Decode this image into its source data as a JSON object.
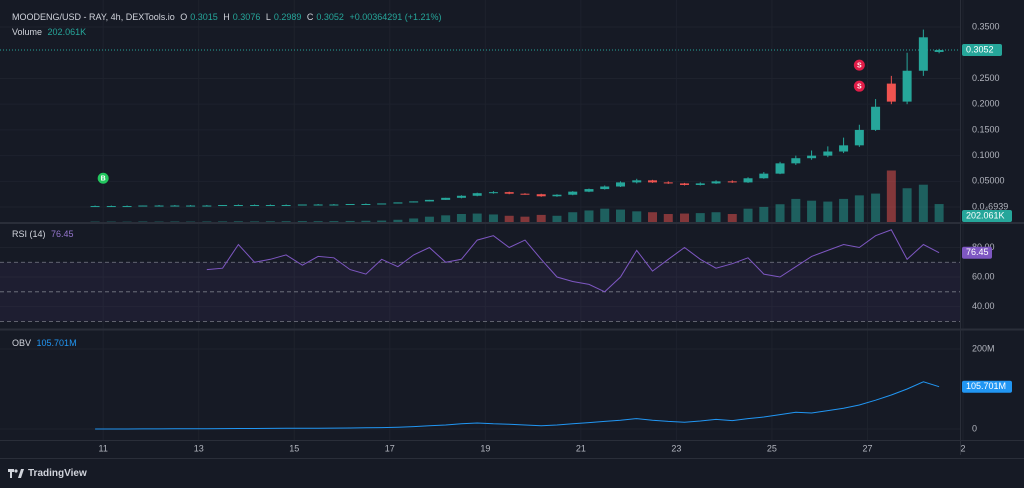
{
  "chart_data": [
    {
      "type": "candlestick",
      "title": "MOODENG/USD - RAY, 4h, DEXTools.io",
      "ohlc_labels": [
        "O",
        "H",
        "L",
        "C"
      ],
      "change": "+0.00364291 (+1.21%)",
      "up_color": "#26a69a",
      "down_color": "#ef5350",
      "x": [
        10.83,
        11.17,
        11.5,
        11.83,
        12.17,
        12.5,
        12.83,
        13.17,
        13.5,
        13.83,
        14.17,
        14.5,
        14.83,
        15.17,
        15.5,
        15.83,
        16.17,
        16.5,
        16.83,
        17.17,
        17.5,
        17.83,
        18.17,
        18.5,
        18.83,
        19.17,
        19.5,
        19.83,
        20.17,
        20.5,
        20.83,
        21.17,
        21.5,
        21.83,
        22.17,
        22.5,
        22.83,
        23.17,
        23.5,
        23.83,
        24.17,
        24.5,
        24.83,
        25.17,
        25.5,
        25.83,
        26.17,
        26.5,
        26.83,
        27.17,
        27.5,
        27.83,
        28.17,
        28.5
      ],
      "open": [
        0.002,
        0.002,
        0.002,
        0.002,
        0.003,
        0.003,
        0.003,
        0.003,
        0.003,
        0.004,
        0.004,
        0.004,
        0.004,
        0.004,
        0.005,
        0.005,
        0.005,
        0.006,
        0.006,
        0.007,
        0.009,
        0.011,
        0.014,
        0.018,
        0.022,
        0.027,
        0.029,
        0.026,
        0.025,
        0.021,
        0.024,
        0.03,
        0.035,
        0.04,
        0.048,
        0.052,
        0.048,
        0.046,
        0.043,
        0.046,
        0.05,
        0.048,
        0.056,
        0.065,
        0.085,
        0.095,
        0.1,
        0.108,
        0.12,
        0.15,
        0.24,
        0.205,
        0.265,
        0.3015
      ],
      "high": [
        0.003,
        0.003,
        0.003,
        0.003,
        0.004,
        0.004,
        0.004,
        0.004,
        0.004,
        0.005,
        0.005,
        0.005,
        0.005,
        0.005,
        0.006,
        0.006,
        0.006,
        0.007,
        0.007,
        0.009,
        0.011,
        0.014,
        0.018,
        0.023,
        0.028,
        0.031,
        0.03,
        0.027,
        0.026,
        0.025,
        0.031,
        0.036,
        0.042,
        0.05,
        0.055,
        0.053,
        0.05,
        0.047,
        0.048,
        0.052,
        0.052,
        0.058,
        0.068,
        0.088,
        0.1,
        0.11,
        0.118,
        0.135,
        0.16,
        0.21,
        0.255,
        0.3,
        0.345,
        0.3076
      ],
      "low": [
        0.001,
        0.001,
        0.001,
        0.002,
        0.002,
        0.002,
        0.002,
        0.002,
        0.003,
        0.003,
        0.003,
        0.003,
        0.003,
        0.004,
        0.004,
        0.004,
        0.005,
        0.005,
        0.006,
        0.007,
        0.009,
        0.011,
        0.014,
        0.017,
        0.021,
        0.026,
        0.025,
        0.024,
        0.02,
        0.02,
        0.023,
        0.029,
        0.034,
        0.039,
        0.046,
        0.047,
        0.045,
        0.042,
        0.042,
        0.045,
        0.047,
        0.047,
        0.055,
        0.064,
        0.082,
        0.092,
        0.097,
        0.105,
        0.117,
        0.148,
        0.2,
        0.2,
        0.255,
        0.2989
      ],
      "close": [
        0.002,
        0.002,
        0.002,
        0.003,
        0.003,
        0.003,
        0.003,
        0.003,
        0.004,
        0.004,
        0.004,
        0.004,
        0.004,
        0.005,
        0.005,
        0.005,
        0.006,
        0.006,
        0.007,
        0.009,
        0.011,
        0.014,
        0.018,
        0.022,
        0.027,
        0.029,
        0.026,
        0.025,
        0.021,
        0.024,
        0.03,
        0.035,
        0.04,
        0.048,
        0.052,
        0.048,
        0.046,
        0.043,
        0.046,
        0.05,
        0.048,
        0.056,
        0.065,
        0.085,
        0.095,
        0.1,
        0.108,
        0.12,
        0.15,
        0.195,
        0.205,
        0.265,
        0.33,
        0.3052
      ],
      "volume": {
        "name": "Volume",
        "values": [
          5,
          5,
          4,
          6,
          5,
          6,
          5,
          6,
          7,
          8,
          7,
          8,
          9,
          10,
          9,
          10,
          12,
          14,
          16,
          25,
          40,
          60,
          75,
          90,
          95,
          85,
          70,
          60,
          80,
          70,
          110,
          130,
          150,
          140,
          120,
          110,
          90,
          95,
          100,
          110,
          90,
          150,
          170,
          200,
          260,
          240,
          230,
          260,
          300,
          320,
          580,
          380,
          420,
          202.061
        ],
        "value_labels": [
          null,
          null,
          null,
          null,
          null,
          null,
          null,
          null,
          null,
          null,
          null,
          null,
          null,
          null,
          null,
          null,
          null,
          null,
          null,
          null,
          null,
          null,
          null,
          null,
          null,
          null,
          null,
          null,
          null,
          null,
          null,
          null,
          null,
          null,
          null,
          null,
          null,
          null,
          null,
          null,
          null,
          null,
          null,
          null,
          null,
          null,
          null,
          null,
          null,
          null,
          null,
          null,
          null,
          "202.061K"
        ],
        "ylim": [
          0,
          2500
        ]
      },
      "markers": [
        {
          "label": "B",
          "x": 11,
          "price": 0.056,
          "color": "#22c55e"
        },
        {
          "label": "S",
          "x": 26.83,
          "price": 0.276,
          "color": "#e11d48"
        },
        {
          "label": "S",
          "x": 26.83,
          "price": 0.235,
          "color": "#e11d48"
        }
      ],
      "xlim": [
        8.84,
        29.0
      ],
      "xticks": [
        11,
        13,
        15,
        17,
        19,
        21,
        23,
        25,
        27,
        {
          "value": 29,
          "label": "2"
        }
      ],
      "ylim": [
        -0.029,
        0.4025
      ],
      "yticks": [
        {
          "value": 6.939e-05,
          "label": "0.0₄6939"
        },
        {
          "value": 0.05,
          "label": "0.05000"
        },
        {
          "value": 0.1,
          "label": "0.1000"
        },
        {
          "value": 0.15,
          "label": "0.1500"
        },
        {
          "value": 0.2,
          "label": "0.2000"
        },
        {
          "value": 0.25,
          "label": "0.2500"
        },
        {
          "value": 0.35,
          "label": "0.3500"
        }
      ],
      "grid": true
    },
    {
      "type": "line",
      "name": "RSI (14)",
      "color": "#7e57c2",
      "values": [
        null,
        null,
        null,
        null,
        null,
        null,
        null,
        65,
        66,
        82,
        70,
        72,
        75,
        68,
        74,
        73,
        65,
        62,
        72,
        67,
        75,
        80,
        70,
        72,
        85,
        88,
        80,
        85,
        72,
        60,
        57,
        55,
        50,
        60,
        78,
        64,
        72,
        80,
        72,
        66,
        69,
        73,
        62,
        60,
        67,
        74,
        78,
        82,
        80,
        88,
        92,
        72,
        82,
        76.45
      ],
      "levels": [
        70,
        50,
        30
      ],
      "ylim": [
        25.5,
        95.9
      ],
      "yticks": [
        {
          "value": 80,
          "label": "80.00"
        },
        {
          "value": 60,
          "label": "60.00"
        },
        {
          "value": 40,
          "label": "40.00"
        }
      ]
    },
    {
      "type": "line",
      "name": "OBV",
      "color": "#2196f3",
      "values": [
        0,
        0,
        0,
        0.3,
        0.3,
        0.5,
        0.5,
        0.8,
        1,
        1.2,
        1.2,
        1.5,
        1.8,
        2,
        2,
        2.3,
        2.5,
        3,
        3.5,
        4.5,
        6,
        8,
        10,
        13,
        15,
        13,
        12,
        10,
        8,
        10,
        13,
        16,
        19,
        22,
        26,
        22,
        19,
        17,
        20,
        24,
        21,
        26,
        30,
        36,
        42,
        40,
        46,
        52,
        60,
        72,
        85,
        100,
        118,
        105.701
      ],
      "value_labels": [
        null,
        null,
        null,
        null,
        null,
        null,
        null,
        null,
        null,
        null,
        null,
        null,
        null,
        null,
        null,
        null,
        null,
        null,
        null,
        null,
        null,
        null,
        null,
        null,
        null,
        null,
        null,
        null,
        null,
        null,
        null,
        null,
        null,
        null,
        null,
        null,
        null,
        null,
        null,
        null,
        null,
        null,
        null,
        null,
        null,
        null,
        null,
        null,
        null,
        null,
        null,
        null,
        null,
        "105.701M"
      ],
      "ylim": [
        -27.5,
        245
      ],
      "yticks": [
        {
          "value": 200,
          "label": "200M"
        },
        0
      ]
    }
  ],
  "footer": {
    "brand": "TradingView"
  }
}
